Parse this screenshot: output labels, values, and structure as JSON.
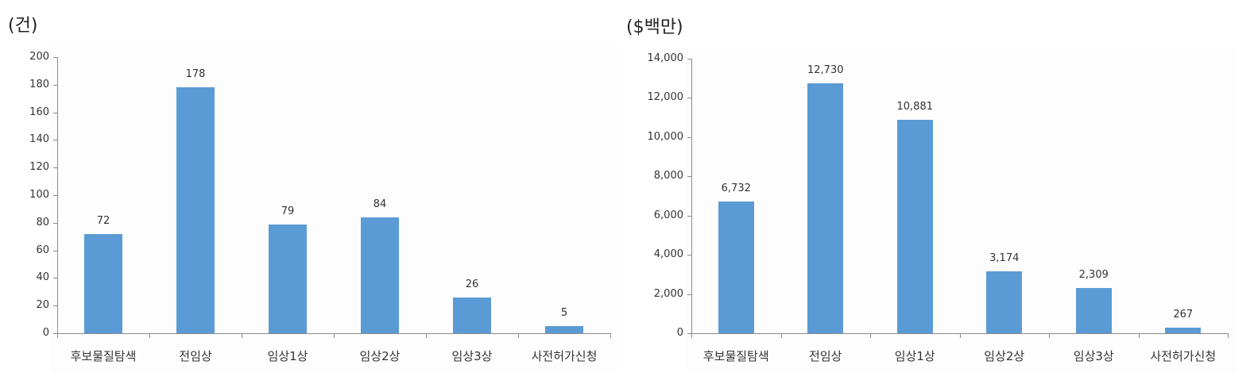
{
  "chart_data": [
    {
      "type": "bar",
      "title": "",
      "unit_label": "(건)",
      "xlabel": "",
      "ylabel": "(건)",
      "categories": [
        "후보물질탐색",
        "전임상",
        "임상1상",
        "임상2상",
        "임상3상",
        "사전허가신청"
      ],
      "values": [
        72,
        178,
        79,
        84,
        26,
        5
      ],
      "value_labels": [
        "72",
        "178",
        "79",
        "84",
        "26",
        "5"
      ],
      "ylim": [
        0,
        200
      ],
      "yticks": [
        0,
        20,
        40,
        60,
        80,
        100,
        120,
        140,
        160,
        180,
        200
      ],
      "ytick_labels": [
        "0",
        "20",
        "40",
        "60",
        "80",
        "100",
        "120",
        "140",
        "160",
        "180",
        "200"
      ],
      "grid": false,
      "legend": "none",
      "bar_color": "#5b9bd5"
    },
    {
      "type": "bar",
      "title": "",
      "unit_label": "($백만)",
      "xlabel": "",
      "ylabel": "($백만)",
      "categories": [
        "후보물질탐색",
        "전임상",
        "임상1상",
        "임상2상",
        "임상3상",
        "사전허가신청"
      ],
      "values": [
        6732,
        12730,
        10881,
        3174,
        2309,
        267
      ],
      "value_labels": [
        "6,732",
        "12,730",
        "10,881",
        "3,174",
        "2,309",
        "267"
      ],
      "ylim": [
        0,
        14000
      ],
      "yticks": [
        0,
        2000,
        4000,
        6000,
        8000,
        10000,
        12000,
        14000
      ],
      "ytick_labels": [
        "0",
        "2,000",
        "4,000",
        "6,000",
        "8,000",
        "10,000",
        "12,000",
        "14,000"
      ],
      "grid": false,
      "legend": "none",
      "bar_color": "#5b9bd5"
    }
  ]
}
